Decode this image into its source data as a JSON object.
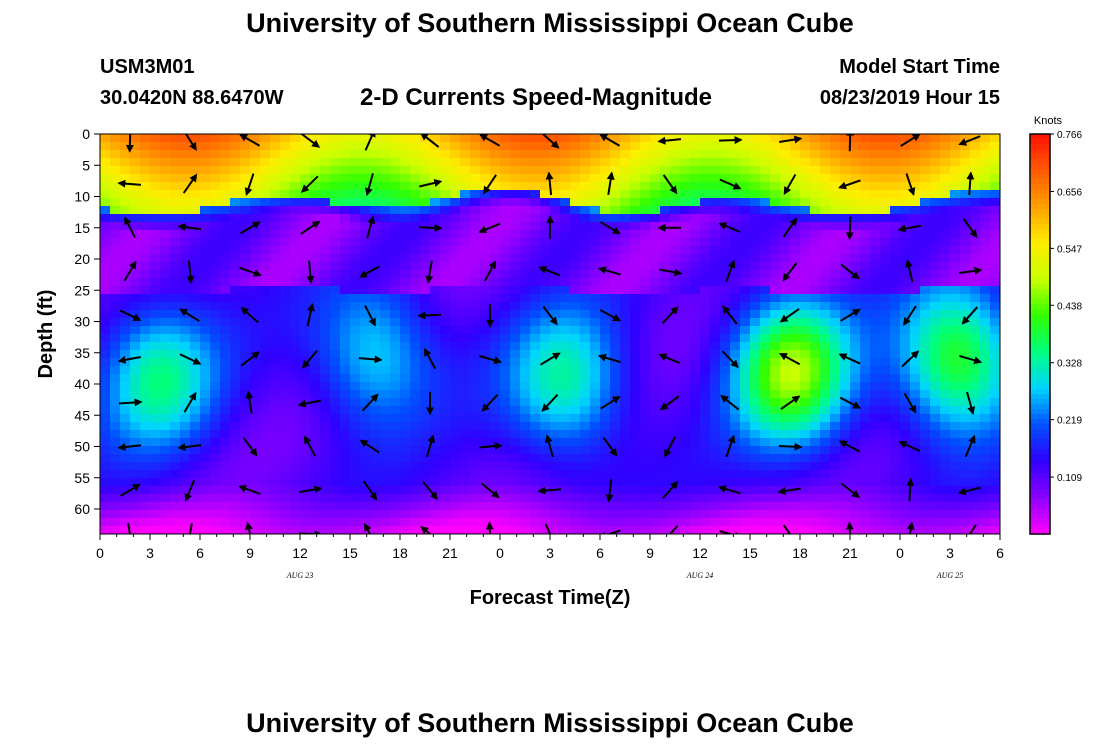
{
  "header": {
    "title": "University of Southern Mississippi Ocean Cube",
    "station_id": "USM3M01",
    "station_location": "30.0420N 88.6470W",
    "subtitle": "2-D Currents Speed-Magnitude",
    "model_label": "Model Start Time",
    "model_time": "08/23/2019 Hour 15"
  },
  "footer": {
    "title": "University of Southern Mississippi Ocean Cube"
  },
  "chart_data": {
    "type": "heatmap",
    "title": "2-D Currents Speed-Magnitude",
    "xlabel": "Forecast Time(Z)",
    "ylabel": "Depth (ft)",
    "x_tick_labels": [
      "0",
      "3",
      "6",
      "9",
      "12",
      "15",
      "18",
      "21",
      "0",
      "3",
      "6",
      "9",
      "12",
      "15",
      "18",
      "21",
      "0",
      "3",
      "6"
    ],
    "x_date_labels": [
      {
        "label": "AUG 23",
        "hour_index": 12
      },
      {
        "label": "AUG 24",
        "hour_index": 36
      },
      {
        "label": "AUG 25",
        "hour_index": 51
      }
    ],
    "x_range_hours": [
      0,
      54
    ],
    "y_tick_labels": [
      "0",
      "5",
      "10",
      "15",
      "20",
      "25",
      "30",
      "35",
      "40",
      "45",
      "50",
      "55",
      "60"
    ],
    "y_range_ft": [
      0,
      64
    ],
    "y_inverted": true,
    "colorbar": {
      "unit": "Knots",
      "ticks": [
        "0.766",
        "0.656",
        "0.547",
        "0.438",
        "0.328",
        "0.219",
        "0.109"
      ],
      "range": [
        0,
        0.766
      ],
      "colors": [
        "#ff00ff",
        "#8c00ff",
        "#3000ff",
        "#0050ff",
        "#00d4ff",
        "#00ff80",
        "#30ff00",
        "#c8ff00",
        "#ffee00",
        "#ffa000",
        "#ff5a00",
        "#ff1000"
      ]
    },
    "surface_layer": {
      "depth_ft": [
        0,
        11
      ],
      "speed_knots": 0.62
    },
    "mid_minimum": {
      "depth_ft": [
        13,
        25
      ],
      "speed_knots": 0.09
    },
    "cores": [
      {
        "hour": 3.5,
        "depth_ft": 39,
        "speed_knots": 0.33
      },
      {
        "hour": 16.5,
        "depth_ft": 35,
        "speed_knots": 0.3
      },
      {
        "hour": 28.0,
        "depth_ft": 40,
        "speed_knots": 0.33
      },
      {
        "hour": 41.5,
        "depth_ft": 38,
        "speed_knots": 0.46
      },
      {
        "hour": 51.5,
        "depth_ft": 36,
        "speed_knots": 0.42
      }
    ]
  }
}
